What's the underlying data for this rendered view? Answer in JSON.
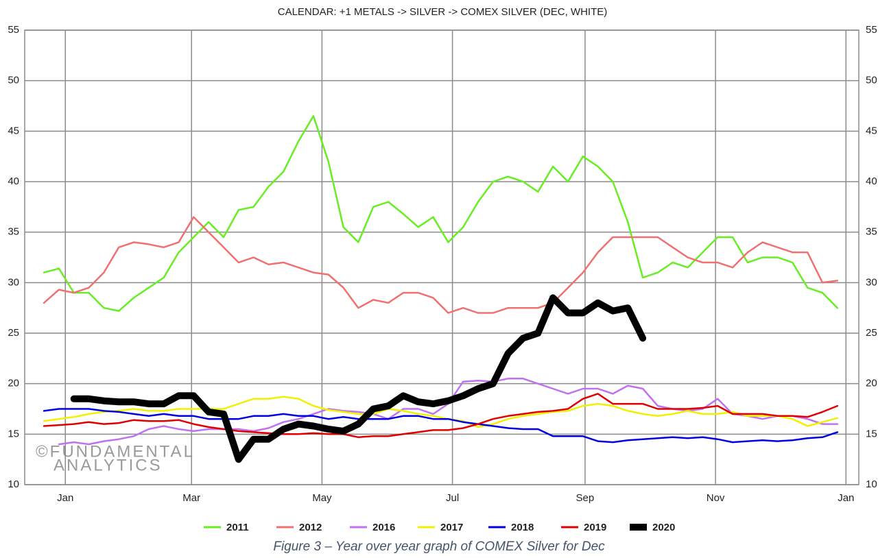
{
  "chart_data": {
    "type": "line",
    "title": "CALENDAR: +1 METALS -> SILVER -> COMEX SILVER (DEC, WHITE)",
    "annotations": [
      "©FUNDAMENTAL",
      "ANALYTICS"
    ],
    "x": [
      -10,
      -3,
      4,
      11,
      18,
      25,
      32,
      39,
      46,
      53,
      60,
      67,
      74,
      81,
      88,
      95,
      102,
      109,
      116,
      123,
      130,
      137,
      144,
      151,
      158,
      165,
      172,
      179,
      186,
      193,
      200,
      207,
      214,
      221,
      228,
      235,
      242,
      249,
      256,
      263,
      270,
      277,
      284,
      291,
      298,
      305,
      312,
      319,
      326,
      333,
      340,
      347,
      354,
      361
    ],
    "xlim": [
      -19,
      371
    ],
    "xticks": [
      {
        "value": 0,
        "label": "Jan"
      },
      {
        "value": 59,
        "label": "Mar"
      },
      {
        "value": 120,
        "label": "May"
      },
      {
        "value": 181,
        "label": "Jul"
      },
      {
        "value": 243,
        "label": "Sep"
      },
      {
        "value": 304,
        "label": "Nov"
      },
      {
        "value": 365,
        "label": "Jan"
      }
    ],
    "ylim": [
      10,
      55
    ],
    "yticks": [
      10,
      15,
      20,
      25,
      30,
      35,
      40,
      45,
      50,
      55
    ],
    "grid": true,
    "series": [
      {
        "name": "2011",
        "color": "#66ee22",
        "width": 2.5,
        "values": [
          31.0,
          31.4,
          29.0,
          29.0,
          27.5,
          27.2,
          28.5,
          29.5,
          30.5,
          33.0,
          34.5,
          36.0,
          34.5,
          37.2,
          37.5,
          39.5,
          41.0,
          44.0,
          46.5,
          42.0,
          35.5,
          34.0,
          37.5,
          38.0,
          36.8,
          35.5,
          36.5,
          34.0,
          35.5,
          38.0,
          40.0,
          40.5,
          40.0,
          39.0,
          41.5,
          40.0,
          42.5,
          41.5,
          40.0,
          36.0,
          30.5,
          31.0,
          32.0,
          31.5,
          33.0,
          34.5,
          34.5,
          32.0,
          32.5,
          32.5,
          32.0,
          29.5,
          29.0,
          27.5
        ]
      },
      {
        "name": "2012",
        "color": "#f07070",
        "width": 2.5,
        "values": [
          28.0,
          29.3,
          29.0,
          29.5,
          31.0,
          33.5,
          34.0,
          33.8,
          33.5,
          34.0,
          36.5,
          35.0,
          33.5,
          32.0,
          32.5,
          31.8,
          32.0,
          31.5,
          31.0,
          30.8,
          29.5,
          27.5,
          28.3,
          28.0,
          29.0,
          29.0,
          28.5,
          27.0,
          27.5,
          27.0,
          27.0,
          27.5,
          27.5,
          27.5,
          28.0,
          29.5,
          31.0,
          33.0,
          34.5,
          34.5,
          34.5,
          34.5,
          33.5,
          32.5,
          32.0,
          32.0,
          31.5,
          33.0,
          34.0,
          33.5,
          33.0,
          33.0,
          30.0,
          30.2
        ]
      },
      {
        "name": "2016",
        "color": "#c070f0",
        "width": 2.5,
        "values": [
          null,
          14.0,
          14.2,
          14.0,
          14.3,
          14.5,
          14.8,
          15.5,
          15.8,
          15.5,
          15.3,
          15.5,
          15.5,
          15.5,
          15.3,
          15.6,
          16.2,
          16.5,
          17.0,
          17.5,
          17.3,
          17.2,
          17.0,
          16.5,
          17.5,
          17.5,
          17.0,
          18.0,
          20.2,
          20.3,
          20.2,
          20.5,
          20.5,
          20.0,
          19.5,
          19.0,
          19.5,
          19.5,
          19.0,
          19.8,
          19.5,
          17.8,
          17.5,
          17.3,
          17.5,
          18.5,
          17.0,
          16.8,
          16.5,
          16.8,
          16.8,
          16.5,
          16.0,
          16.0
        ]
      },
      {
        "name": "2017",
        "color": "#f0f000",
        "width": 2.5,
        "values": [
          16.3,
          16.5,
          16.7,
          17.0,
          17.2,
          17.3,
          17.5,
          17.3,
          17.3,
          17.5,
          17.5,
          17.5,
          17.5,
          18.0,
          18.5,
          18.5,
          18.7,
          18.5,
          17.8,
          17.4,
          17.2,
          17.0,
          17.0,
          17.5,
          17.3,
          17.0,
          16.8,
          16.5,
          16.3,
          15.7,
          16.0,
          16.5,
          16.8,
          17.0,
          17.2,
          17.3,
          17.8,
          18.0,
          17.8,
          17.3,
          17.0,
          16.8,
          17.0,
          17.3,
          17.0,
          17.0,
          17.2,
          16.8,
          16.8,
          16.8,
          16.5,
          15.8,
          16.2,
          16.6
        ]
      },
      {
        "name": "2018",
        "color": "#0000e0",
        "width": 2.5,
        "values": [
          17.3,
          17.5,
          17.5,
          17.5,
          17.3,
          17.2,
          17.0,
          16.8,
          17.0,
          16.8,
          16.8,
          16.5,
          16.5,
          16.5,
          16.8,
          16.8,
          17.0,
          16.8,
          16.8,
          16.5,
          16.7,
          16.5,
          16.5,
          16.5,
          16.8,
          16.8,
          16.5,
          16.5,
          16.2,
          16.0,
          15.8,
          15.6,
          15.5,
          15.5,
          14.8,
          14.8,
          14.8,
          14.3,
          14.2,
          14.4,
          14.5,
          14.6,
          14.7,
          14.6,
          14.7,
          14.5,
          14.2,
          14.3,
          14.4,
          14.3,
          14.4,
          14.6,
          14.7,
          15.2
        ]
      },
      {
        "name": "2019",
        "color": "#e00000",
        "width": 2.5,
        "values": [
          15.8,
          15.9,
          16.0,
          16.2,
          16.0,
          16.1,
          16.4,
          16.3,
          16.3,
          16.4,
          16.0,
          15.7,
          15.5,
          15.3,
          15.2,
          15.1,
          15.0,
          15.0,
          15.1,
          15.0,
          15.0,
          14.7,
          14.8,
          14.8,
          15.0,
          15.2,
          15.4,
          15.4,
          15.6,
          16.0,
          16.5,
          16.8,
          17.0,
          17.2,
          17.3,
          17.5,
          18.5,
          19.0,
          18.0,
          18.0,
          18.0,
          17.5,
          17.5,
          17.5,
          17.6,
          17.8,
          17.0,
          17.0,
          17.0,
          16.8,
          16.8,
          16.7,
          17.2,
          17.8
        ]
      },
      {
        "name": "2020",
        "color": "#000000",
        "width": 10,
        "values": [
          null,
          null,
          18.5,
          18.5,
          18.3,
          18.2,
          18.2,
          18.0,
          18.0,
          18.8,
          18.8,
          17.2,
          17.0,
          12.5,
          14.5,
          14.5,
          15.5,
          16.0,
          15.8,
          15.5,
          15.3,
          16.0,
          17.5,
          17.8,
          18.8,
          18.2,
          18.0,
          18.3,
          18.8,
          19.5,
          20.0,
          23.0,
          24.5,
          25.0,
          28.5,
          27.0,
          27.0,
          28.0,
          27.2,
          27.5,
          24.5,
          null,
          null,
          null,
          null,
          null,
          null,
          null,
          null,
          null,
          null,
          null,
          null,
          null
        ]
      }
    ]
  },
  "caption": "Figure 3 – Year over year graph of COMEX Silver for Dec"
}
